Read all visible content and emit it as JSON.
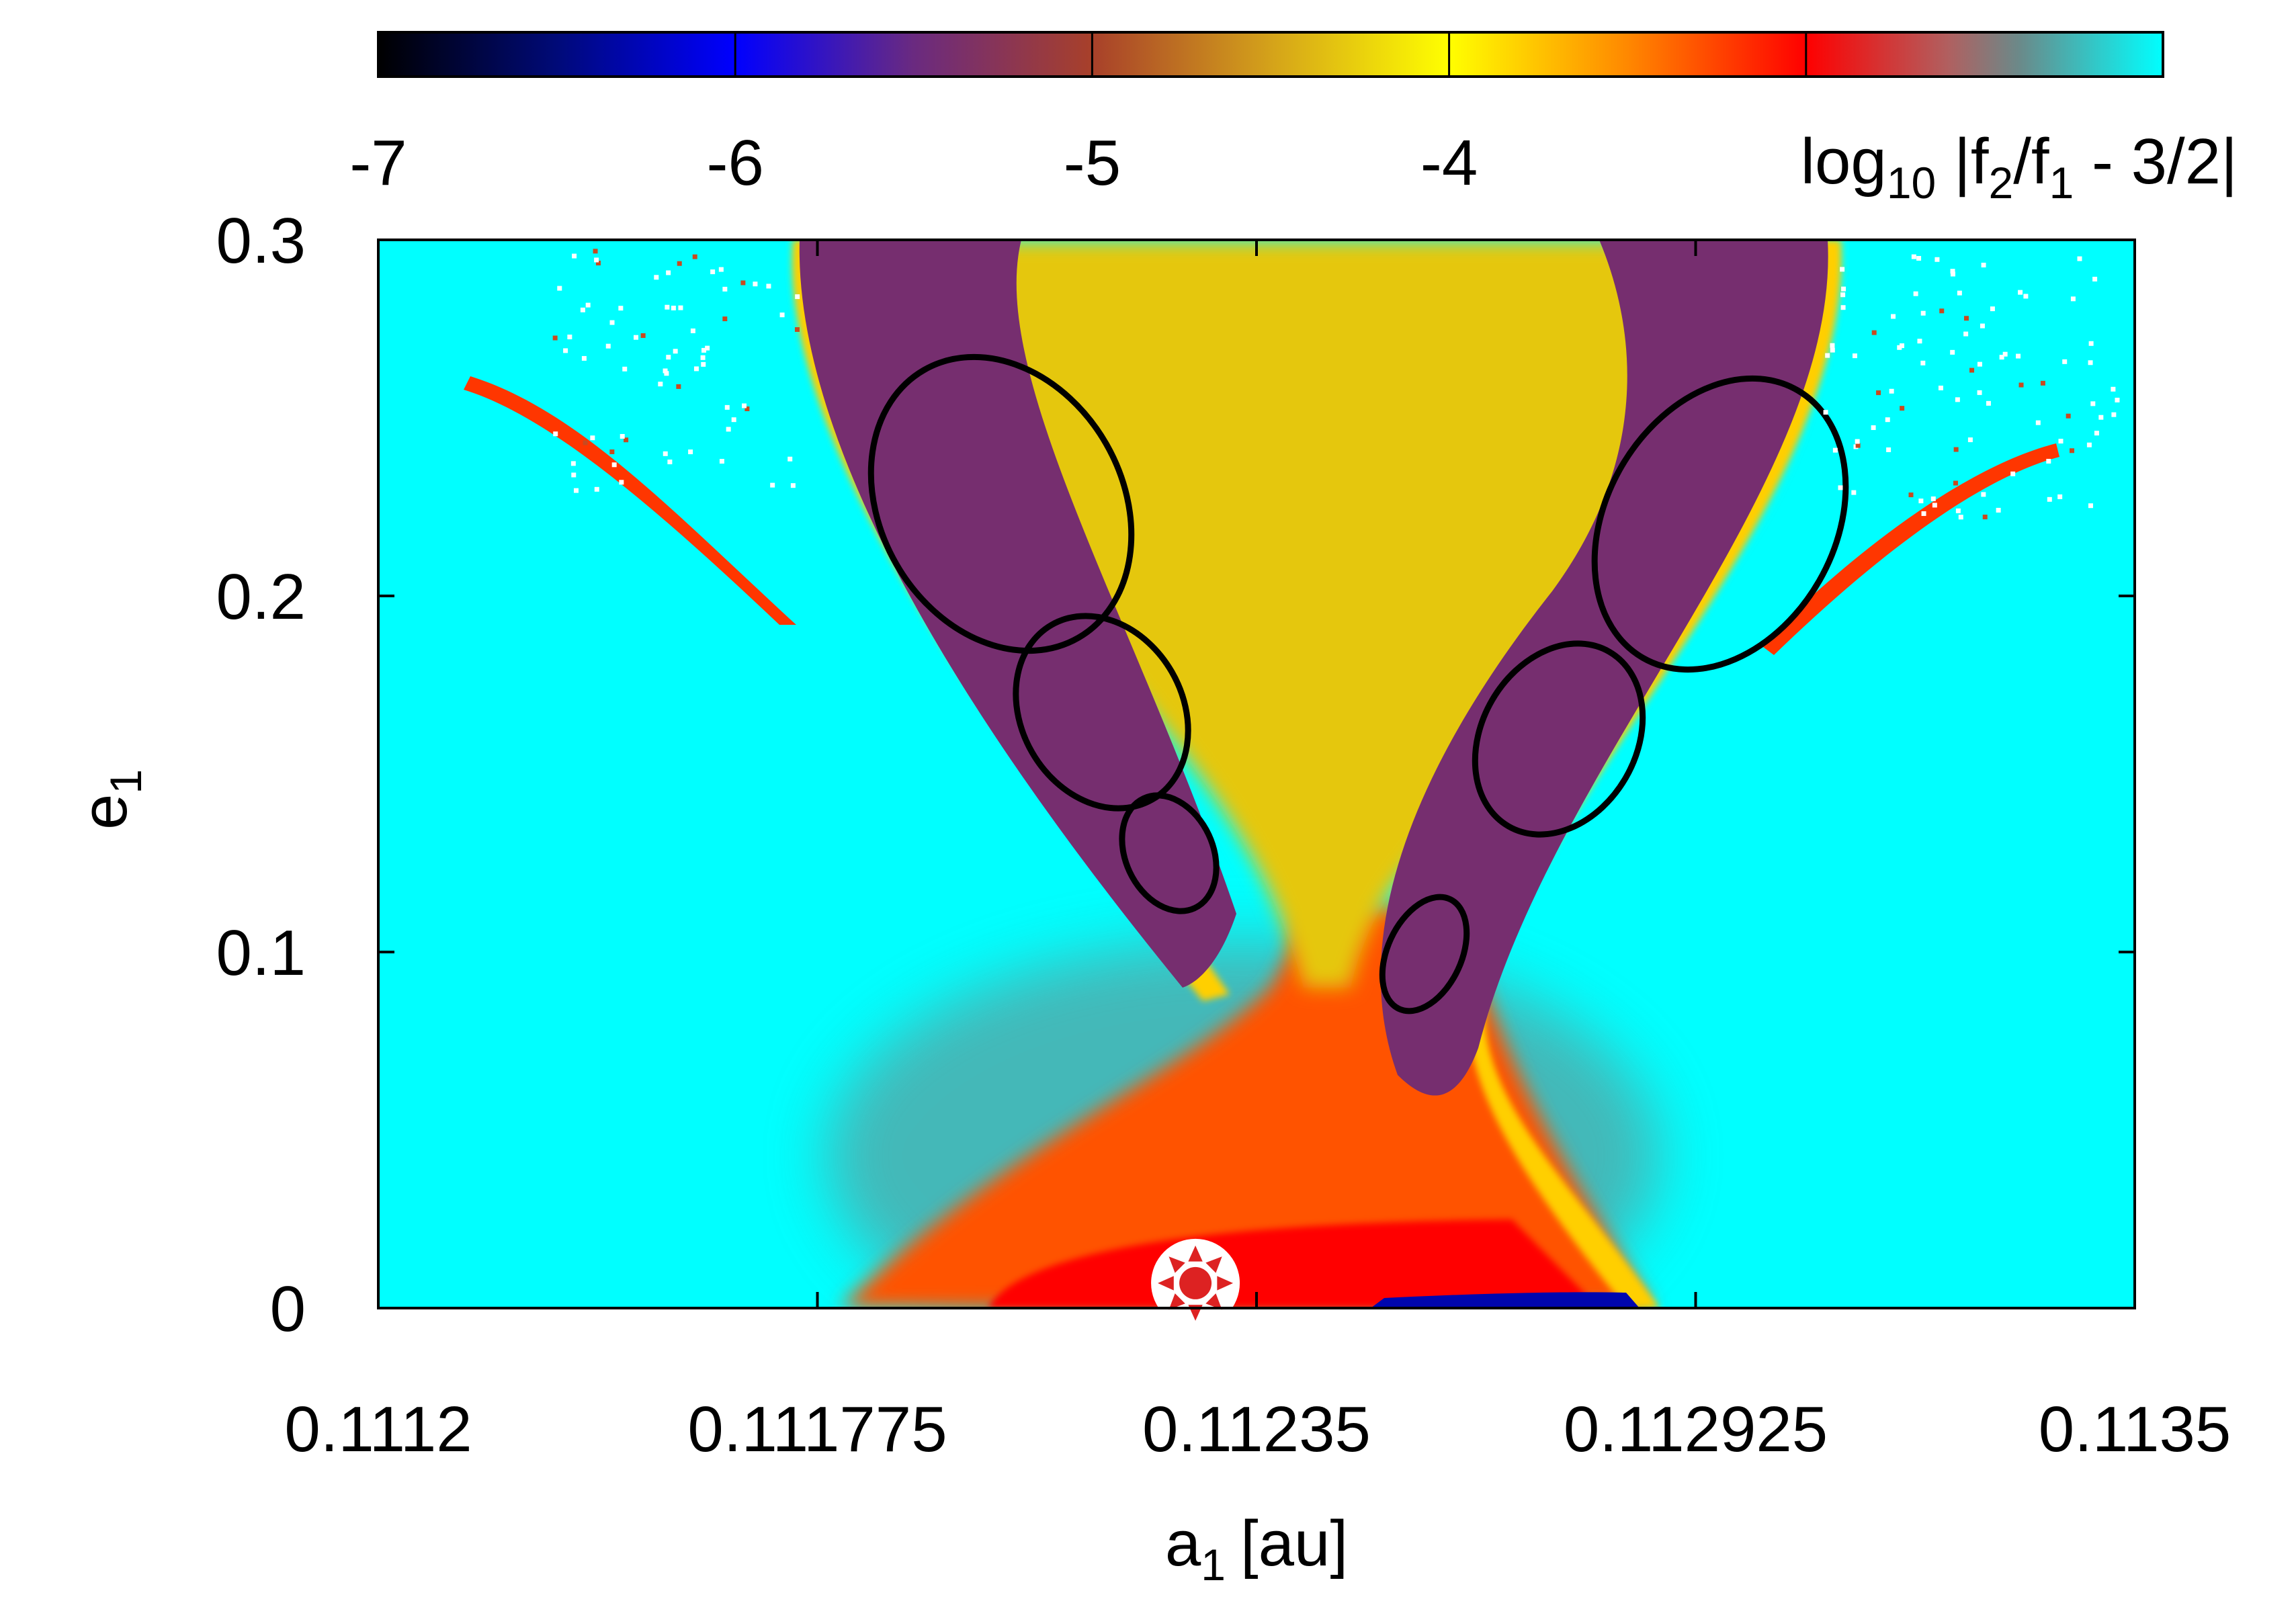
{
  "chart_data": {
    "type": "heatmap",
    "title": "",
    "xlabel": "a",
    "xlabel_sub": "1",
    "xlabel_unit": "[au]",
    "ylabel": "e",
    "ylabel_sub": "1",
    "xlim": [
      0.1112,
      0.1135
    ],
    "ylim": [
      0,
      0.3
    ],
    "x_ticks": [
      0.1112,
      0.111775,
      0.11235,
      0.112925,
      0.1135
    ],
    "x_tick_labels": [
      "0.1112",
      "0.111775",
      "0.11235",
      "0.112925",
      "0.1135"
    ],
    "y_ticks": [
      0,
      0.1,
      0.2,
      0.3
    ],
    "y_tick_labels": [
      "0",
      "0.1",
      "0.2",
      "0.3"
    ],
    "colorbar": {
      "position": "top",
      "range": [
        -7,
        -2
      ],
      "ticks": [
        -7,
        -6,
        -5,
        -4
      ],
      "tick_labels": [
        "-7",
        "-6",
        "-5",
        "-4"
      ],
      "label_main": "log",
      "label_sub": "10",
      "label_expr_1": " |f",
      "label_sub_2": "2",
      "label_expr_2": "/f",
      "label_sub_3": "1",
      "label_expr_3": " - 3/2|",
      "stops": [
        {
          "v": -7.0,
          "color": "#000000"
        },
        {
          "v": -6.5,
          "color": "#000a78"
        },
        {
          "v": -6.0,
          "color": "#0000ff"
        },
        {
          "v": -5.5,
          "color": "#6a2a80"
        },
        {
          "v": -5.0,
          "color": "#a8402a"
        },
        {
          "v": -4.5,
          "color": "#d4a21a"
        },
        {
          "v": -4.0,
          "color": "#ffff00"
        },
        {
          "v": -3.5,
          "color": "#ff8800"
        },
        {
          "v": -3.0,
          "color": "#ff0000"
        },
        {
          "v": -2.6,
          "color": "#b06060"
        },
        {
          "v": -2.4,
          "color": "#6a8a8a"
        },
        {
          "v": -2.0,
          "color": "#00ffff"
        }
      ]
    },
    "background_value": -2.0,
    "regions": [
      {
        "name": "central-yellow",
        "value": -4.3
      },
      {
        "name": "lower-red-orange",
        "value": -3.3
      },
      {
        "name": "bottom-red-band",
        "value": -3.0
      },
      {
        "name": "left-lobe",
        "value": -5.4
      },
      {
        "name": "right-lobe",
        "value": -5.4
      },
      {
        "name": "separatrix-lines",
        "value": -7.0
      },
      {
        "name": "lobe-edges",
        "value": -3.8
      },
      {
        "name": "outer-arms",
        "value": -3.2
      }
    ],
    "marker": {
      "x": 0.11227,
      "y": 0.007,
      "symbol": "sun",
      "color": "#dd2222"
    }
  }
}
